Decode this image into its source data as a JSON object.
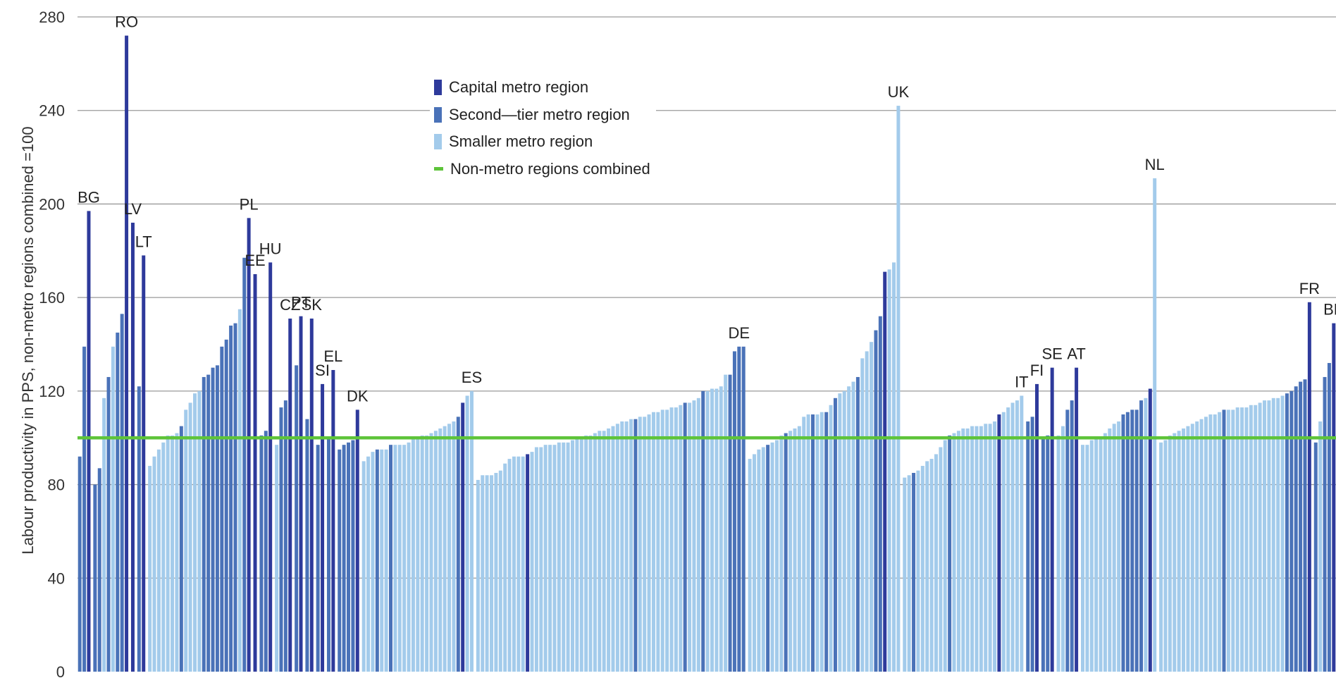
{
  "chart_data": {
    "type": "bar",
    "ylabel": "Labour productivity in PPS, non-metro regions combined =100",
    "ylim": [
      0,
      280
    ],
    "yticks": [
      0,
      40,
      80,
      120,
      160,
      200,
      240,
      280
    ],
    "grid": true,
    "reference_line": {
      "label": "Non-metro regions combined",
      "value": 100,
      "color": "#5ec43a"
    },
    "legend": {
      "placement": "top-center",
      "items": [
        {
          "label": "Capital metro region",
          "color": "#2e3a9b"
        },
        {
          "label": "Second—tier metro region",
          "color": "#4a72b8"
        },
        {
          "label": "Smaller metro region",
          "color": "#a3cbeb"
        },
        {
          "label": "Non-metro regions combined",
          "color": "#5ec43a"
        }
      ]
    },
    "countries": [
      {
        "code": "BG",
        "bars": [
          [
            92,
            "s"
          ],
          [
            139,
            "s"
          ],
          [
            197,
            "c"
          ]
        ]
      },
      {
        "code": "RO",
        "bars": [
          [
            80,
            "s"
          ],
          [
            87,
            "s"
          ],
          [
            117,
            "m"
          ],
          [
            126,
            "s"
          ],
          [
            139,
            "m"
          ],
          [
            145,
            "s"
          ],
          [
            153,
            "s"
          ],
          [
            272,
            "c"
          ]
        ]
      },
      {
        "code": "LV",
        "bars": [
          [
            192,
            "c"
          ]
        ]
      },
      {
        "code": "LT",
        "bars": [
          [
            122,
            "s"
          ],
          [
            178,
            "c"
          ]
        ]
      },
      {
        "code": "PL",
        "bars": [
          [
            88,
            "m"
          ],
          [
            92,
            "m"
          ],
          [
            95,
            "m"
          ],
          [
            98,
            "m"
          ],
          [
            101,
            "m"
          ],
          [
            101,
            "m"
          ],
          [
            102,
            "m"
          ],
          [
            105,
            "s"
          ],
          [
            112,
            "m"
          ],
          [
            115,
            "m"
          ],
          [
            119,
            "m"
          ],
          [
            120,
            "m"
          ],
          [
            126,
            "s"
          ],
          [
            127,
            "s"
          ],
          [
            130,
            "s"
          ],
          [
            131,
            "s"
          ],
          [
            139,
            "s"
          ],
          [
            142,
            "s"
          ],
          [
            148,
            "s"
          ],
          [
            149,
            "s"
          ],
          [
            155,
            "m"
          ],
          [
            177,
            "s"
          ],
          [
            194,
            "c"
          ]
        ]
      },
      {
        "code": "EE",
        "bars": [
          [
            170,
            "c"
          ]
        ]
      },
      {
        "code": "HU",
        "bars": [
          [
            101,
            "s"
          ],
          [
            103,
            "s"
          ],
          [
            175,
            "c"
          ]
        ]
      },
      {
        "code": "CZ",
        "bars": [
          [
            97,
            "m"
          ],
          [
            113,
            "s"
          ],
          [
            116,
            "s"
          ],
          [
            151,
            "c"
          ]
        ]
      },
      {
        "code": "PT",
        "bars": [
          [
            131,
            "s"
          ],
          [
            152,
            "c"
          ]
        ]
      },
      {
        "code": "SK",
        "bars": [
          [
            108,
            "s"
          ],
          [
            151,
            "c"
          ]
        ]
      },
      {
        "code": "SI",
        "bars": [
          [
            97,
            "s"
          ],
          [
            123,
            "c"
          ]
        ]
      },
      {
        "code": "EL",
        "bars": [
          [
            100,
            "s"
          ],
          [
            129,
            "c"
          ]
        ]
      },
      {
        "code": "DK",
        "bars": [
          [
            95,
            "s"
          ],
          [
            97,
            "s"
          ],
          [
            98,
            "s"
          ],
          [
            99,
            "s"
          ],
          [
            112,
            "c"
          ]
        ]
      },
      {
        "code": "ES",
        "bars": [
          [
            90,
            "m"
          ],
          [
            92,
            "m"
          ],
          [
            94,
            "m"
          ],
          [
            95,
            "s"
          ],
          [
            95,
            "m"
          ],
          [
            95,
            "m"
          ],
          [
            97,
            "s"
          ],
          [
            97,
            "m"
          ],
          [
            97,
            "m"
          ],
          [
            97,
            "m"
          ],
          [
            98,
            "m"
          ],
          [
            100,
            "m"
          ],
          [
            100,
            "m"
          ],
          [
            101,
            "m"
          ],
          [
            101,
            "m"
          ],
          [
            102,
            "m"
          ],
          [
            103,
            "m"
          ],
          [
            104,
            "m"
          ],
          [
            105,
            "m"
          ],
          [
            106,
            "m"
          ],
          [
            107,
            "m"
          ],
          [
            109,
            "s"
          ],
          [
            115,
            "c"
          ],
          [
            118,
            "m"
          ],
          [
            120,
            "m"
          ]
        ]
      },
      {
        "code": "DE",
        "bars": [
          [
            82,
            "m"
          ],
          [
            84,
            "m"
          ],
          [
            84,
            "m"
          ],
          [
            84,
            "m"
          ],
          [
            85,
            "m"
          ],
          [
            86,
            "m"
          ],
          [
            89,
            "m"
          ],
          [
            91,
            "m"
          ],
          [
            92,
            "m"
          ],
          [
            92,
            "m"
          ],
          [
            92,
            "m"
          ],
          [
            93,
            "c"
          ],
          [
            94,
            "m"
          ],
          [
            96,
            "m"
          ],
          [
            96,
            "m"
          ],
          [
            97,
            "m"
          ],
          [
            97,
            "m"
          ],
          [
            97,
            "m"
          ],
          [
            98,
            "m"
          ],
          [
            98,
            "m"
          ],
          [
            98,
            "m"
          ],
          [
            99,
            "m"
          ],
          [
            100,
            "m"
          ],
          [
            100,
            "m"
          ],
          [
            101,
            "m"
          ],
          [
            101,
            "m"
          ],
          [
            102,
            "m"
          ],
          [
            103,
            "m"
          ],
          [
            103,
            "m"
          ],
          [
            104,
            "m"
          ],
          [
            105,
            "m"
          ],
          [
            106,
            "m"
          ],
          [
            107,
            "m"
          ],
          [
            107,
            "m"
          ],
          [
            108,
            "m"
          ],
          [
            108,
            "s"
          ],
          [
            109,
            "m"
          ],
          [
            109,
            "m"
          ],
          [
            110,
            "m"
          ],
          [
            111,
            "m"
          ],
          [
            111,
            "m"
          ],
          [
            112,
            "m"
          ],
          [
            112,
            "m"
          ],
          [
            113,
            "m"
          ],
          [
            113,
            "m"
          ],
          [
            114,
            "m"
          ],
          [
            115,
            "s"
          ],
          [
            115,
            "m"
          ],
          [
            116,
            "m"
          ],
          [
            117,
            "m"
          ],
          [
            120,
            "s"
          ],
          [
            120,
            "m"
          ],
          [
            121,
            "m"
          ],
          [
            121,
            "m"
          ],
          [
            122,
            "m"
          ],
          [
            127,
            "m"
          ],
          [
            127,
            "s"
          ],
          [
            137,
            "s"
          ],
          [
            139,
            "s"
          ],
          [
            139,
            "s"
          ]
        ]
      },
      {
        "code": "UK",
        "bars": [
          [
            91,
            "m"
          ],
          [
            93,
            "m"
          ],
          [
            95,
            "m"
          ],
          [
            96,
            "m"
          ],
          [
            97,
            "s"
          ],
          [
            98,
            "m"
          ],
          [
            99,
            "m"
          ],
          [
            101,
            "m"
          ],
          [
            102,
            "s"
          ],
          [
            103,
            "m"
          ],
          [
            104,
            "m"
          ],
          [
            105,
            "m"
          ],
          [
            109,
            "m"
          ],
          [
            110,
            "m"
          ],
          [
            110,
            "s"
          ],
          [
            110,
            "m"
          ],
          [
            111,
            "m"
          ],
          [
            111,
            "s"
          ],
          [
            114,
            "m"
          ],
          [
            117,
            "s"
          ],
          [
            119,
            "m"
          ],
          [
            120,
            "m"
          ],
          [
            122,
            "m"
          ],
          [
            124,
            "m"
          ],
          [
            126,
            "s"
          ],
          [
            134,
            "m"
          ],
          [
            137,
            "m"
          ],
          [
            141,
            "m"
          ],
          [
            146,
            "s"
          ],
          [
            152,
            "s"
          ],
          [
            171,
            "c"
          ],
          [
            172,
            "m"
          ],
          [
            175,
            "m"
          ],
          [
            242,
            "m"
          ]
        ]
      },
      {
        "code": "IT",
        "bars": [
          [
            83,
            "m"
          ],
          [
            84,
            "m"
          ],
          [
            85,
            "s"
          ],
          [
            86,
            "m"
          ],
          [
            88,
            "m"
          ],
          [
            90,
            "m"
          ],
          [
            91,
            "m"
          ],
          [
            93,
            "m"
          ],
          [
            96,
            "m"
          ],
          [
            99,
            "m"
          ],
          [
            101,
            "s"
          ],
          [
            102,
            "m"
          ],
          [
            103,
            "m"
          ],
          [
            104,
            "m"
          ],
          [
            104,
            "m"
          ],
          [
            105,
            "m"
          ],
          [
            105,
            "m"
          ],
          [
            105,
            "m"
          ],
          [
            106,
            "m"
          ],
          [
            106,
            "m"
          ],
          [
            107,
            "m"
          ],
          [
            110,
            "c"
          ],
          [
            111,
            "m"
          ],
          [
            113,
            "m"
          ],
          [
            115,
            "m"
          ],
          [
            116,
            "m"
          ],
          [
            118,
            "m"
          ]
        ]
      },
      {
        "code": "FI",
        "bars": [
          [
            107,
            "s"
          ],
          [
            109,
            "s"
          ],
          [
            123,
            "c"
          ]
        ]
      },
      {
        "code": "SE",
        "bars": [
          [
            100,
            "s"
          ],
          [
            101,
            "s"
          ],
          [
            130,
            "c"
          ]
        ]
      },
      {
        "code": "AT",
        "bars": [
          [
            101,
            "m"
          ],
          [
            105,
            "m"
          ],
          [
            112,
            "s"
          ],
          [
            116,
            "s"
          ],
          [
            130,
            "c"
          ]
        ]
      },
      {
        "code": "NL",
        "bars": [
          [
            97,
            "m"
          ],
          [
            97,
            "m"
          ],
          [
            99,
            "m"
          ],
          [
            100,
            "m"
          ],
          [
            100,
            "m"
          ],
          [
            102,
            "m"
          ],
          [
            104,
            "m"
          ],
          [
            106,
            "m"
          ],
          [
            107,
            "m"
          ],
          [
            110,
            "s"
          ],
          [
            111,
            "s"
          ],
          [
            112,
            "s"
          ],
          [
            112,
            "s"
          ],
          [
            116,
            "s"
          ],
          [
            117,
            "m"
          ],
          [
            121,
            "c"
          ],
          [
            211,
            "m"
          ]
        ]
      },
      {
        "code": "FR",
        "bars": [
          [
            98,
            "m"
          ],
          [
            99,
            "m"
          ],
          [
            101,
            "m"
          ],
          [
            102,
            "m"
          ],
          [
            103,
            "m"
          ],
          [
            104,
            "m"
          ],
          [
            105,
            "m"
          ],
          [
            106,
            "m"
          ],
          [
            107,
            "m"
          ],
          [
            108,
            "m"
          ],
          [
            109,
            "m"
          ],
          [
            110,
            "m"
          ],
          [
            110,
            "m"
          ],
          [
            111,
            "m"
          ],
          [
            112,
            "s"
          ],
          [
            112,
            "m"
          ],
          [
            112,
            "m"
          ],
          [
            113,
            "m"
          ],
          [
            113,
            "m"
          ],
          [
            113,
            "m"
          ],
          [
            114,
            "m"
          ],
          [
            114,
            "m"
          ],
          [
            115,
            "m"
          ],
          [
            116,
            "m"
          ],
          [
            116,
            "m"
          ],
          [
            117,
            "m"
          ],
          [
            117,
            "m"
          ],
          [
            118,
            "m"
          ],
          [
            119,
            "s"
          ],
          [
            120,
            "s"
          ],
          [
            122,
            "s"
          ],
          [
            124,
            "s"
          ],
          [
            125,
            "s"
          ],
          [
            158,
            "c"
          ]
        ]
      },
      {
        "code": "BE",
        "bars": [
          [
            98,
            "s"
          ],
          [
            107,
            "m"
          ],
          [
            126,
            "s"
          ],
          [
            132,
            "s"
          ],
          [
            149,
            "c"
          ]
        ]
      }
    ]
  }
}
